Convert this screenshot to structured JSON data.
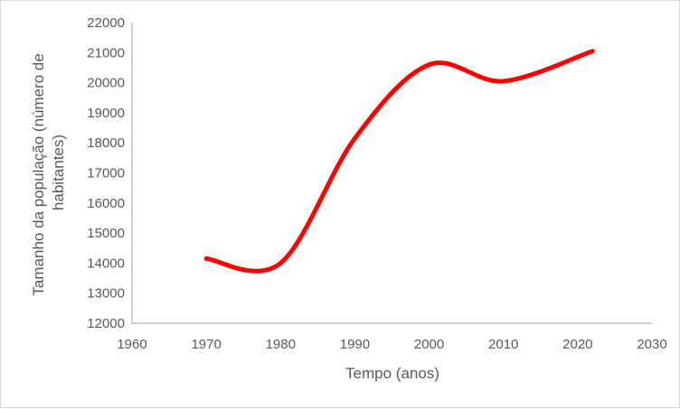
{
  "chart_data": {
    "type": "line",
    "title": "",
    "xlabel": "Tempo (anos)",
    "ylabel_lines": [
      "Tamanho da população (número de",
      "habitantes)"
    ],
    "xlim": [
      1960,
      2030
    ],
    "ylim": [
      12000,
      22000
    ],
    "x_ticks": [
      1960,
      1970,
      1980,
      1990,
      2000,
      2010,
      2020,
      2030
    ],
    "y_ticks": [
      12000,
      13000,
      14000,
      15000,
      16000,
      17000,
      18000,
      19000,
      20000,
      21000,
      22000
    ],
    "smooth": true,
    "grid": false,
    "series": [
      {
        "color": "#ff0000",
        "x": [
          1970,
          1980,
          1990,
          2000,
          2010,
          2022
        ],
        "y": [
          14150,
          14000,
          18150,
          20600,
          20050,
          21050
        ]
      }
    ]
  }
}
